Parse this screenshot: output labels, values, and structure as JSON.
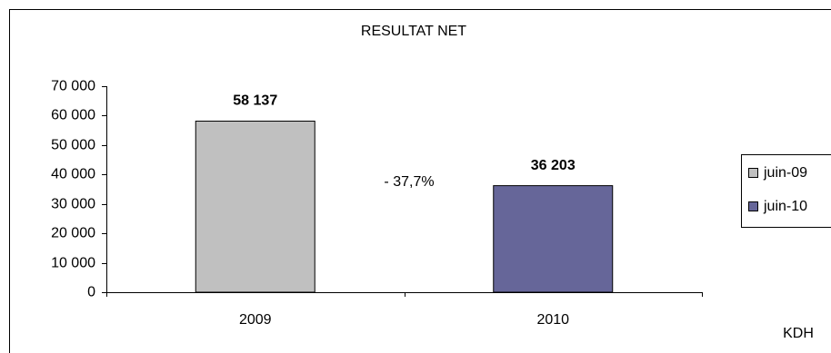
{
  "chart_data": {
    "type": "bar",
    "title": "RESULTAT NET",
    "categories": [
      "2009",
      "2010"
    ],
    "series": [
      {
        "name": "juin-09",
        "color": "#c0c0c0",
        "values": [
          58137,
          null
        ],
        "value_labels": [
          "58 137",
          null
        ]
      },
      {
        "name": "juin-10",
        "color": "#666699",
        "values": [
          null,
          36203
        ],
        "value_labels": [
          null,
          "36 203"
        ]
      }
    ],
    "ylim": [
      0,
      70000
    ],
    "yticks": [
      0,
      {
        "value": 10000,
        "label": "10 000"
      },
      {
        "value": 20000,
        "label": "20 000"
      },
      {
        "value": 30000,
        "label": "30 000"
      },
      {
        "value": 40000,
        "label": "40 000"
      },
      {
        "value": 50000,
        "label": "50 000"
      },
      {
        "value": 60000,
        "label": "60 000"
      },
      {
        "value": 70000,
        "label": "70 000"
      }
    ],
    "annotation": "- 37,7%",
    "unit_label": "KDH",
    "legend_position": "right"
  }
}
